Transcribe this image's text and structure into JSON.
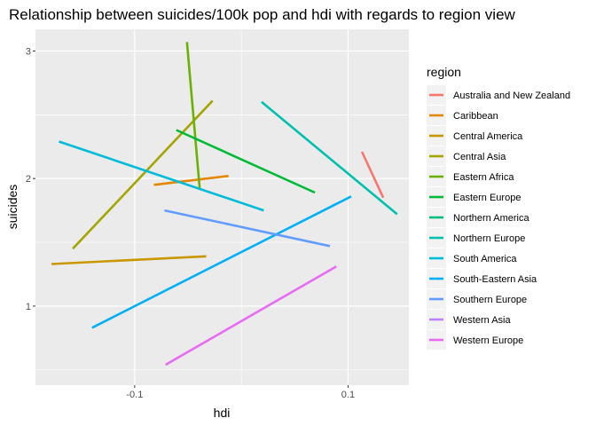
{
  "chart_data": {
    "type": "line",
    "title": "Relationship between suicides/100k pop and hdi with regards to region view",
    "xlabel": "hdi",
    "ylabel": "suicides",
    "xlim": [
      -0.193,
      0.157
    ],
    "ylim": [
      0.38,
      3.17
    ],
    "x_ticks": [
      -0.1,
      0.1
    ],
    "x_tick_labels": [
      "-0.1",
      "0.1"
    ],
    "y_ticks": [
      1,
      2,
      3
    ],
    "y_tick_labels": [
      "1",
      "2",
      "3"
    ],
    "grid": true,
    "legend": {
      "title": "region",
      "position": "right"
    },
    "series": [
      {
        "name": "Australia and New Zealand",
        "color": "#F8766D",
        "x": [
          0.113,
          0.133
        ],
        "y": [
          2.21,
          1.85
        ]
      },
      {
        "name": "Caribbean",
        "color": "#E58700",
        "x": [
          -0.082,
          -0.012
        ],
        "y": [
          1.95,
          2.02
        ]
      },
      {
        "name": "Central America",
        "color": "#C99800",
        "x": [
          -0.178,
          -0.033
        ],
        "y": [
          1.33,
          1.39
        ]
      },
      {
        "name": "Central Asia",
        "color": "#A3A500",
        "x": [
          -0.158,
          -0.027
        ],
        "y": [
          1.45,
          2.61
        ]
      },
      {
        "name": "Eastern Africa",
        "color": "#6BB100",
        "x": [
          -0.051,
          -0.039
        ],
        "y": [
          3.07,
          1.92
        ]
      },
      {
        "name": "Eastern Europe",
        "color": "#00BA38",
        "x": [
          -0.061,
          0.069
        ],
        "y": [
          2.38,
          1.89
        ]
      },
      {
        "name": "Northern America",
        "color": "#00BF7D",
        "x": [],
        "y": []
      },
      {
        "name": "Northern Europe",
        "color": "#00C0AF",
        "x": [
          0.019,
          0.146
        ],
        "y": [
          2.6,
          1.72
        ]
      },
      {
        "name": "South America",
        "color": "#00BCD8",
        "x": [
          -0.171,
          0.021
        ],
        "y": [
          2.29,
          1.75
        ]
      },
      {
        "name": "South-Eastern Asia",
        "color": "#00B0F6",
        "x": [
          -0.14,
          0.103
        ],
        "y": [
          0.83,
          1.86
        ]
      },
      {
        "name": "Southern Europe",
        "color": "#619CFF",
        "x": [
          -0.072,
          0.083
        ],
        "y": [
          1.75,
          1.47
        ]
      },
      {
        "name": "Western Asia",
        "color": "#B983FF",
        "x": [],
        "y": []
      },
      {
        "name": "Western Europe",
        "color": "#E76BF3",
        "x": [
          -0.071,
          0.089
        ],
        "y": [
          0.54,
          1.31
        ]
      }
    ]
  }
}
